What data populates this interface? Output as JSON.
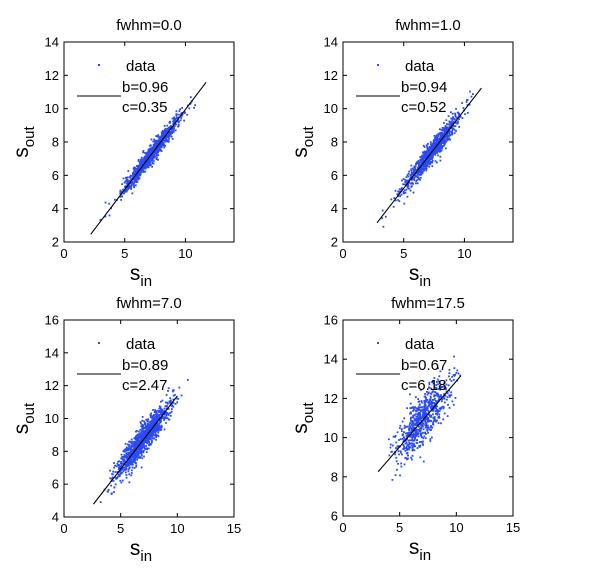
{
  "colors": {
    "data": "#2a4bf4",
    "fit": "#000000",
    "axes": "#000000"
  },
  "chart_data": [
    {
      "type": "scatter",
      "title": "fwhm=0.0",
      "xlabel_base": "s",
      "xlabel_sub": "in",
      "ylabel_base": "s",
      "ylabel_sub": "out",
      "xlim": [
        0,
        14
      ],
      "ylim": [
        2,
        14
      ],
      "xticks": [
        0,
        5,
        10
      ],
      "yticks": [
        2,
        4,
        6,
        8,
        10,
        12,
        14
      ],
      "legend": {
        "data_label": "data",
        "fit_b": "b=0.96",
        "fit_c": "c=0.35",
        "placement": "top-left"
      },
      "fit": {
        "b": 0.96,
        "c": 0.35,
        "x_range": [
          2.2,
          11.7
        ]
      },
      "cloud": {
        "center": [
          7.2,
          7.25
        ],
        "x_range": [
          2.5,
          11.5
        ],
        "spread": 0.28,
        "n": 900
      },
      "grid": false
    },
    {
      "type": "scatter",
      "title": "fwhm=1.0",
      "xlabel_base": "s",
      "xlabel_sub": "in",
      "ylabel_base": "s",
      "ylabel_sub": "out",
      "xlim": [
        0,
        14
      ],
      "ylim": [
        2,
        14
      ],
      "xticks": [
        0,
        5,
        10
      ],
      "yticks": [
        2,
        4,
        6,
        8,
        10,
        12,
        14
      ],
      "legend": {
        "data_label": "data",
        "fit_b": "b=0.94",
        "fit_c": "c=0.52",
        "placement": "top-left"
      },
      "fit": {
        "b": 0.94,
        "c": 0.52,
        "x_range": [
          2.8,
          11.4
        ]
      },
      "cloud": {
        "center": [
          7.2,
          7.3
        ],
        "x_range": [
          2.8,
          11.4
        ],
        "spread": 0.32,
        "n": 900
      },
      "grid": false
    },
    {
      "type": "scatter",
      "title": "fwhm=7.0",
      "xlabel_base": "s",
      "xlabel_sub": "in",
      "ylabel_base": "s",
      "ylabel_sub": "out",
      "xlim": [
        0,
        15
      ],
      "ylim": [
        4,
        16
      ],
      "xticks": [
        0,
        5,
        10,
        15
      ],
      "yticks": [
        4,
        6,
        8,
        10,
        12,
        14,
        16
      ],
      "legend": {
        "data_label": "data",
        "fit_b": "b=0.89",
        "fit_c": "c=2.47",
        "placement": "top-left"
      },
      "fit": {
        "b": 0.89,
        "c": 2.47,
        "x_range": [
          2.6,
          10.0
        ]
      },
      "cloud": {
        "center": [
          7.0,
          8.7
        ],
        "x_range": [
          2.4,
          11.6
        ],
        "spread": 0.45,
        "n": 1100
      },
      "grid": false
    },
    {
      "type": "scatter",
      "title": "fwhm=17.5",
      "xlabel_base": "s",
      "xlabel_sub": "in",
      "ylabel_base": "s",
      "ylabel_sub": "out",
      "xlim": [
        0,
        15
      ],
      "ylim": [
        6,
        16
      ],
      "xticks": [
        0,
        5,
        10,
        15
      ],
      "yticks": [
        6,
        8,
        10,
        12,
        14,
        16
      ],
      "legend": {
        "data_label": "data",
        "fit_b": "b=0.67",
        "fit_c": "c=6.18",
        "placement": "top-left"
      },
      "fit": {
        "b": 0.67,
        "c": 6.18,
        "x_range": [
          3.1,
          10.4
        ]
      },
      "cloud": {
        "center": [
          7.0,
          10.9
        ],
        "x_range": [
          3.3,
          10.6
        ],
        "spread": 0.65,
        "n": 700
      },
      "grid": false
    }
  ]
}
